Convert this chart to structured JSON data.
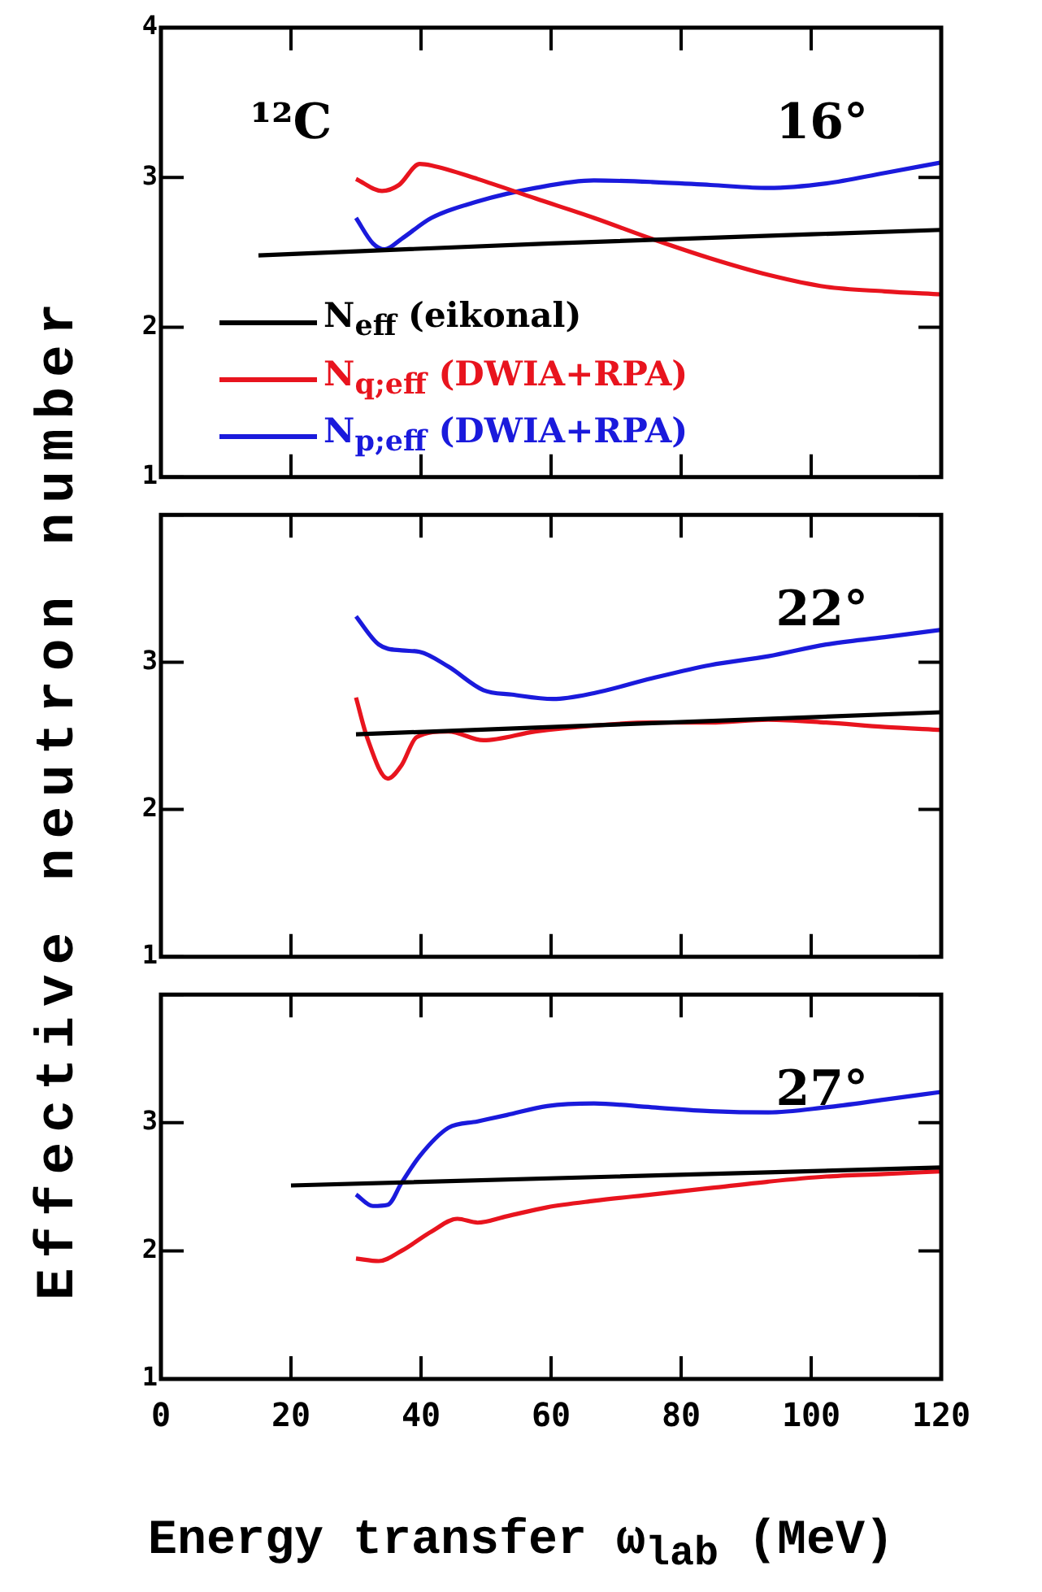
{
  "chart_data": [
    {
      "type": "line",
      "ylabel": null,
      "annotations": [
        "¹²C",
        "16°"
      ],
      "legend": "bottom left",
      "tick_labels": "y",
      "xlim": [
        0,
        120
      ],
      "xticks": [
        0,
        20,
        40,
        60,
        80,
        100,
        120
      ],
      "ylim": [
        1,
        4
      ],
      "yticks": [
        1,
        2,
        3,
        4
      ],
      "series": [
        {
          "name": "N$_{eff}$ (eikonal)",
          "color": "#000000",
          "x": [
            15,
            60,
            120
          ],
          "values": [
            2.48,
            2.56,
            2.65
          ]
        },
        {
          "name": "N$_{q;eff}$ (DWIA+RPA)",
          "color": "#e8141e",
          "x": [
            30,
            34,
            36.6,
            39.8,
            41.6,
            48.7,
            57.6,
            66.6,
            75.5,
            84.5,
            93.4,
            102.3,
            111.3,
            120
          ],
          "values": [
            2.99,
            2.91,
            2.95,
            3.09,
            3.08,
            2.99,
            2.86,
            2.73,
            2.59,
            2.46,
            2.35,
            2.27,
            2.24,
            2.22
          ]
        },
        {
          "name": "N$_{p;eff}$ (DWIA+RPA)",
          "color": "#1a1adc",
          "x": [
            30,
            32.6,
            34.4,
            37,
            41.6,
            48.7,
            57.6,
            66.6,
            75.5,
            84.5,
            93.4,
            102.3,
            111.3,
            120
          ],
          "values": [
            2.73,
            2.56,
            2.52,
            2.59,
            2.73,
            2.84,
            2.93,
            2.98,
            2.97,
            2.95,
            2.93,
            2.96,
            3.03,
            3.1
          ]
        }
      ]
    },
    {
      "type": "line",
      "ylabel": "Effective neutron number",
      "annotations": [
        "22°"
      ],
      "tick_labels": "y",
      "xlim": [
        0,
        120
      ],
      "xticks": [
        0,
        20,
        40,
        60,
        80,
        100,
        120
      ],
      "ylim": [
        1,
        4
      ],
      "yticks": [
        1,
        2,
        3,
        {
          "value": 4,
          "label": null
        }
      ],
      "series": [
        {
          "color": "#000000",
          "x": [
            30,
            120
          ],
          "values": [
            2.51,
            2.66
          ]
        },
        {
          "color": "#e8141e",
          "x": [
            30,
            31.7,
            34.9,
            37,
            39.3,
            44.2,
            49.6,
            57.6,
            66.6,
            75.5,
            84.5,
            93.4,
            102.3,
            111.3,
            120
          ],
          "values": [
            2.76,
            2.49,
            2.21,
            2.3,
            2.49,
            2.53,
            2.47,
            2.53,
            2.57,
            2.59,
            2.59,
            2.61,
            2.59,
            2.56,
            2.54
          ]
        },
        {
          "color": "#1a1adc",
          "x": [
            30,
            33.5,
            37,
            39.8,
            44.2,
            49.6,
            54,
            60.3,
            66.6,
            75.5,
            84.5,
            93.4,
            102.3,
            111.3,
            120
          ],
          "values": [
            3.31,
            3.12,
            3.08,
            3.07,
            2.97,
            2.81,
            2.78,
            2.75,
            2.79,
            2.89,
            2.98,
            3.04,
            3.12,
            3.17,
            3.22
          ]
        }
      ]
    },
    {
      "type": "line",
      "xlabel": "Energy transfer ω$_{lab}$ (MeV)",
      "annotations": [
        "27°"
      ],
      "xlim": [
        0,
        120
      ],
      "xticks": [
        0,
        20,
        40,
        60,
        80,
        100,
        120
      ],
      "ylim": [
        1,
        4
      ],
      "yticks": [
        1,
        2,
        3,
        {
          "value": 4,
          "label": null
        }
      ],
      "series": [
        {
          "color": "#000000",
          "x": [
            20,
            120
          ],
          "values": [
            2.51,
            2.65
          ]
        },
        {
          "color": "#e8141e",
          "x": [
            30,
            33.5,
            37,
            41.6,
            45.6,
            48.7,
            53.2,
            59.4,
            66.6,
            75.5,
            84.5,
            93.4,
            102.3,
            111.3,
            120
          ],
          "values": [
            1.94,
            1.92,
            2.0,
            2.15,
            2.25,
            2.22,
            2.27,
            2.34,
            2.39,
            2.44,
            2.49,
            2.54,
            2.58,
            2.6,
            2.62
          ]
        },
        {
          "color": "#1a1adc",
          "x": [
            30,
            32.6,
            34.9,
            37,
            39.8,
            44.2,
            48.7,
            53.2,
            59.4,
            66.6,
            75.5,
            84.5,
            93.4,
            102.3,
            111.3,
            120
          ],
          "values": [
            2.44,
            2.35,
            2.36,
            2.53,
            2.74,
            2.96,
            3.01,
            3.06,
            3.13,
            3.15,
            3.12,
            3.09,
            3.08,
            3.12,
            3.18,
            3.24
          ]
        }
      ]
    }
  ]
}
